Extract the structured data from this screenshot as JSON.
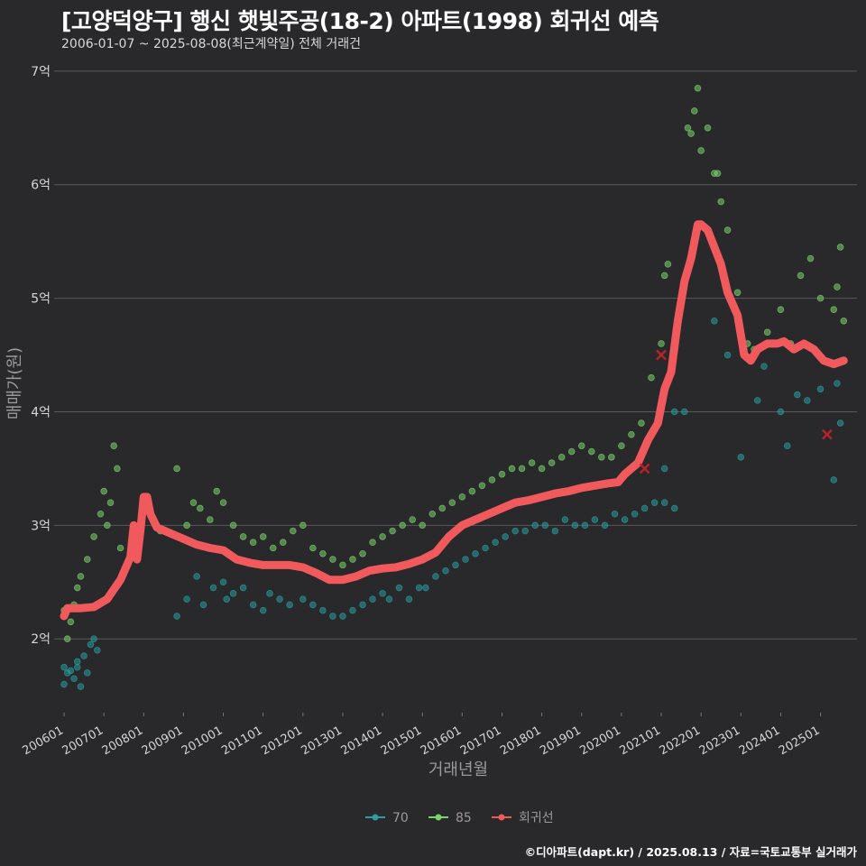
{
  "title": "[고양덕양구] 행신 햇빛주공(18-2) 아파트(1998) 회귀선 예측",
  "subtitle": "2006-01-07 ~ 2025-08-08(최근계약일) 전체 거래건",
  "footer": "©디아파트(dapt.kr) / 2025.08.13 / 자료=국토교통부 실거래가",
  "colors": {
    "background": "#29282a",
    "grid": "#5a595b",
    "size70": "#2a9d9e",
    "size85": "#7ad36b",
    "regression": "#f05a5d"
  },
  "chart_data": {
    "type": "scatter",
    "xlabel": "거래년월",
    "ylabel": "매매가(원)",
    "x_range": [
      "2005-10",
      "2025-12"
    ],
    "ylim": [
      1.35,
      7.15
    ],
    "y_unit": "억",
    "y_ticks": [
      2,
      3,
      4,
      5,
      6,
      7
    ],
    "y_tick_labels": [
      "2억",
      "3억",
      "4억",
      "5억",
      "6억",
      "7억"
    ],
    "x_ticks": [
      "2006-01",
      "2007-01",
      "2008-01",
      "2009-01",
      "2010-01",
      "2011-01",
      "2012-01",
      "2013-01",
      "2014-01",
      "2015-01",
      "2016-01",
      "2017-01",
      "2018-01",
      "2019-01",
      "2020-01",
      "2021-01",
      "2022-01",
      "2023-01",
      "2024-01",
      "2025-01"
    ],
    "x_tick_labels": [
      "200601",
      "200701",
      "200801",
      "200901",
      "201001",
      "201101",
      "201201",
      "201301",
      "201401",
      "201501",
      "201601",
      "201701",
      "201801",
      "201901",
      "202001",
      "202101",
      "202201",
      "202301",
      "202401",
      "202501"
    ],
    "grid": "horizontal",
    "legend_position": "bottom",
    "legend": [
      {
        "name": "70",
        "color": "#2a9d9e"
      },
      {
        "name": "85",
        "color": "#7ad36b"
      },
      {
        "name": "회귀선",
        "color": "#f05a5d"
      }
    ],
    "series": [
      {
        "name": "70",
        "points": [
          [
            "2006-01",
            1.75
          ],
          [
            "2006-01",
            1.6
          ],
          [
            "2006-02",
            1.7
          ],
          [
            "2006-03",
            1.72
          ],
          [
            "2006-04",
            1.65
          ],
          [
            "2006-05",
            1.8
          ],
          [
            "2006-05",
            1.75
          ],
          [
            "2006-06",
            1.58
          ],
          [
            "2006-07",
            1.85
          ],
          [
            "2006-08",
            1.7
          ],
          [
            "2006-09",
            1.95
          ],
          [
            "2006-10",
            2.0
          ],
          [
            "2006-11",
            1.9
          ],
          [
            "2008-11",
            2.2
          ],
          [
            "2009-02",
            2.35
          ],
          [
            "2009-05",
            2.55
          ],
          [
            "2009-07",
            2.3
          ],
          [
            "2009-10",
            2.45
          ],
          [
            "2010-01",
            2.5
          ],
          [
            "2010-02",
            2.35
          ],
          [
            "2010-04",
            2.4
          ],
          [
            "2010-07",
            2.45
          ],
          [
            "2010-10",
            2.3
          ],
          [
            "2011-01",
            2.25
          ],
          [
            "2011-03",
            2.4
          ],
          [
            "2011-06",
            2.35
          ],
          [
            "2011-09",
            2.3
          ],
          [
            "2012-01",
            2.35
          ],
          [
            "2012-04",
            2.3
          ],
          [
            "2012-07",
            2.25
          ],
          [
            "2012-10",
            2.2
          ],
          [
            "2013-01",
            2.2
          ],
          [
            "2013-04",
            2.25
          ],
          [
            "2013-07",
            2.3
          ],
          [
            "2013-10",
            2.35
          ],
          [
            "2014-01",
            2.4
          ],
          [
            "2014-03",
            2.35
          ],
          [
            "2014-06",
            2.45
          ],
          [
            "2014-09",
            2.35
          ],
          [
            "2014-12",
            2.45
          ],
          [
            "2015-02",
            2.45
          ],
          [
            "2015-05",
            2.55
          ],
          [
            "2015-08",
            2.6
          ],
          [
            "2015-11",
            2.65
          ],
          [
            "2016-02",
            2.7
          ],
          [
            "2016-05",
            2.75
          ],
          [
            "2016-08",
            2.8
          ],
          [
            "2016-11",
            2.85
          ],
          [
            "2017-02",
            2.9
          ],
          [
            "2017-05",
            2.95
          ],
          [
            "2017-08",
            2.95
          ],
          [
            "2017-11",
            3.0
          ],
          [
            "2018-02",
            3.0
          ],
          [
            "2018-05",
            2.95
          ],
          [
            "2018-08",
            3.05
          ],
          [
            "2018-11",
            3.0
          ],
          [
            "2019-02",
            3.0
          ],
          [
            "2019-05",
            3.05
          ],
          [
            "2019-08",
            3.0
          ],
          [
            "2019-11",
            3.1
          ],
          [
            "2020-02",
            3.05
          ],
          [
            "2020-05",
            3.1
          ],
          [
            "2020-08",
            3.15
          ],
          [
            "2020-11",
            3.2
          ],
          [
            "2021-02",
            3.2
          ],
          [
            "2021-05",
            3.15
          ],
          [
            "2021-02",
            3.5
          ],
          [
            "2021-05",
            4.0
          ],
          [
            "2021-08",
            4.0
          ],
          [
            "2022-05",
            4.8
          ],
          [
            "2022-09",
            4.5
          ],
          [
            "2023-01",
            3.6
          ],
          [
            "2023-06",
            4.1
          ],
          [
            "2023-08",
            4.4
          ],
          [
            "2024-01",
            4.0
          ],
          [
            "2024-03",
            3.7
          ],
          [
            "2024-06",
            4.15
          ],
          [
            "2024-09",
            4.1
          ],
          [
            "2025-01",
            4.2
          ],
          [
            "2025-05",
            3.4
          ],
          [
            "2025-06",
            4.25
          ],
          [
            "2025-07",
            3.9
          ]
        ]
      },
      {
        "name": "85",
        "points": [
          [
            "2006-01",
            2.25
          ],
          [
            "2006-02",
            2.0
          ],
          [
            "2006-03",
            2.15
          ],
          [
            "2006-04",
            2.3
          ],
          [
            "2006-05",
            2.45
          ],
          [
            "2006-06",
            2.55
          ],
          [
            "2006-08",
            2.7
          ],
          [
            "2006-10",
            2.9
          ],
          [
            "2006-12",
            3.1
          ],
          [
            "2007-01",
            3.3
          ],
          [
            "2007-02",
            3.0
          ],
          [
            "2007-03",
            3.2
          ],
          [
            "2007-04",
            3.7
          ],
          [
            "2007-05",
            3.5
          ],
          [
            "2007-06",
            2.8
          ],
          [
            "2008-06",
            2.95
          ],
          [
            "2008-11",
            3.5
          ],
          [
            "2009-02",
            3.0
          ],
          [
            "2009-04",
            3.2
          ],
          [
            "2009-06",
            3.15
          ],
          [
            "2009-09",
            3.05
          ],
          [
            "2009-11",
            3.3
          ],
          [
            "2010-01",
            3.2
          ],
          [
            "2010-04",
            3.0
          ],
          [
            "2010-07",
            2.9
          ],
          [
            "2010-10",
            2.85
          ],
          [
            "2011-01",
            2.9
          ],
          [
            "2011-04",
            2.8
          ],
          [
            "2011-07",
            2.85
          ],
          [
            "2011-10",
            2.95
          ],
          [
            "2012-01",
            3.0
          ],
          [
            "2012-04",
            2.8
          ],
          [
            "2012-07",
            2.75
          ],
          [
            "2012-10",
            2.7
          ],
          [
            "2013-01",
            2.65
          ],
          [
            "2013-04",
            2.7
          ],
          [
            "2013-07",
            2.75
          ],
          [
            "2013-10",
            2.85
          ],
          [
            "2014-01",
            2.9
          ],
          [
            "2014-04",
            2.95
          ],
          [
            "2014-07",
            3.0
          ],
          [
            "2014-10",
            3.05
          ],
          [
            "2015-01",
            3.0
          ],
          [
            "2015-04",
            3.1
          ],
          [
            "2015-07",
            3.15
          ],
          [
            "2015-10",
            3.2
          ],
          [
            "2016-01",
            3.25
          ],
          [
            "2016-04",
            3.3
          ],
          [
            "2016-07",
            3.35
          ],
          [
            "2016-10",
            3.4
          ],
          [
            "2017-01",
            3.45
          ],
          [
            "2017-04",
            3.5
          ],
          [
            "2017-07",
            3.5
          ],
          [
            "2017-10",
            3.55
          ],
          [
            "2018-01",
            3.5
          ],
          [
            "2018-04",
            3.55
          ],
          [
            "2018-07",
            3.6
          ],
          [
            "2018-10",
            3.65
          ],
          [
            "2019-01",
            3.7
          ],
          [
            "2019-04",
            3.65
          ],
          [
            "2019-07",
            3.6
          ],
          [
            "2019-10",
            3.6
          ],
          [
            "2020-01",
            3.7
          ],
          [
            "2020-04",
            3.8
          ],
          [
            "2020-07",
            3.9
          ],
          [
            "2020-10",
            4.3
          ],
          [
            "2021-01",
            4.6
          ],
          [
            "2021-02",
            5.2
          ],
          [
            "2021-03",
            5.3
          ],
          [
            "2021-09",
            6.5
          ],
          [
            "2021-10",
            6.45
          ],
          [
            "2021-11",
            6.65
          ],
          [
            "2021-12",
            6.85
          ],
          [
            "2022-01",
            6.3
          ],
          [
            "2022-03",
            6.5
          ],
          [
            "2022-05",
            6.1
          ],
          [
            "2022-06",
            6.1
          ],
          [
            "2022-07",
            5.85
          ],
          [
            "2022-09",
            5.6
          ],
          [
            "2022-12",
            5.05
          ],
          [
            "2023-03",
            4.6
          ],
          [
            "2023-05",
            4.55
          ],
          [
            "2023-09",
            4.7
          ],
          [
            "2024-01",
            4.9
          ],
          [
            "2024-04",
            4.6
          ],
          [
            "2024-07",
            5.2
          ],
          [
            "2024-10",
            5.35
          ],
          [
            "2025-01",
            5.0
          ],
          [
            "2025-05",
            4.9
          ],
          [
            "2025-06",
            5.1
          ],
          [
            "2025-07",
            5.45
          ],
          [
            "2025-08",
            4.8
          ]
        ]
      },
      {
        "name": "회귀선",
        "points": [
          [
            "2006-01",
            2.2
          ],
          [
            "2006-02",
            2.27
          ],
          [
            "2006-06",
            2.27
          ],
          [
            "2006-10",
            2.28
          ],
          [
            "2007-02",
            2.35
          ],
          [
            "2007-06",
            2.52
          ],
          [
            "2007-09",
            2.72
          ],
          [
            "2007-10",
            3.0
          ],
          [
            "2007-11",
            2.7
          ],
          [
            "2007-12",
            2.95
          ],
          [
            "2008-01",
            3.25
          ],
          [
            "2008-02",
            3.25
          ],
          [
            "2008-03",
            3.1
          ],
          [
            "2008-05",
            2.98
          ],
          [
            "2008-09",
            2.93
          ],
          [
            "2009-01",
            2.88
          ],
          [
            "2009-05",
            2.83
          ],
          [
            "2009-09",
            2.8
          ],
          [
            "2010-01",
            2.78
          ],
          [
            "2010-05",
            2.7
          ],
          [
            "2010-09",
            2.67
          ],
          [
            "2011-01",
            2.65
          ],
          [
            "2011-05",
            2.65
          ],
          [
            "2011-09",
            2.65
          ],
          [
            "2012-01",
            2.63
          ],
          [
            "2012-05",
            2.58
          ],
          [
            "2012-09",
            2.52
          ],
          [
            "2013-01",
            2.52
          ],
          [
            "2013-05",
            2.55
          ],
          [
            "2013-09",
            2.6
          ],
          [
            "2014-01",
            2.62
          ],
          [
            "2014-05",
            2.63
          ],
          [
            "2014-09",
            2.66
          ],
          [
            "2015-01",
            2.7
          ],
          [
            "2015-05",
            2.76
          ],
          [
            "2015-09",
            2.9
          ],
          [
            "2016-01",
            3.0
          ],
          [
            "2016-05",
            3.05
          ],
          [
            "2016-09",
            3.1
          ],
          [
            "2017-01",
            3.15
          ],
          [
            "2017-05",
            3.2
          ],
          [
            "2017-09",
            3.22
          ],
          [
            "2018-01",
            3.25
          ],
          [
            "2018-05",
            3.28
          ],
          [
            "2018-09",
            3.3
          ],
          [
            "2019-01",
            3.33
          ],
          [
            "2019-05",
            3.35
          ],
          [
            "2019-09",
            3.37
          ],
          [
            "2019-12",
            3.38
          ],
          [
            "2020-02",
            3.45
          ],
          [
            "2020-06",
            3.55
          ],
          [
            "2020-09",
            3.75
          ],
          [
            "2020-12",
            3.9
          ],
          [
            "2021-02",
            4.2
          ],
          [
            "2021-04",
            4.35
          ],
          [
            "2021-06",
            4.8
          ],
          [
            "2021-08",
            5.15
          ],
          [
            "2021-10",
            5.35
          ],
          [
            "2021-12",
            5.65
          ],
          [
            "2022-01",
            5.65
          ],
          [
            "2022-03",
            5.6
          ],
          [
            "2022-05",
            5.45
          ],
          [
            "2022-07",
            5.3
          ],
          [
            "2022-09",
            5.05
          ],
          [
            "2022-12",
            4.85
          ],
          [
            "2023-02",
            4.5
          ],
          [
            "2023-04",
            4.45
          ],
          [
            "2023-06",
            4.55
          ],
          [
            "2023-09",
            4.6
          ],
          [
            "2023-12",
            4.6
          ],
          [
            "2024-02",
            4.62
          ],
          [
            "2024-05",
            4.55
          ],
          [
            "2024-08",
            4.6
          ],
          [
            "2024-11",
            4.55
          ],
          [
            "2025-02",
            4.45
          ],
          [
            "2025-05",
            4.42
          ],
          [
            "2025-08",
            4.45
          ]
        ]
      }
    ],
    "markers": [
      {
        "x": "2020-08",
        "y": 3.5
      },
      {
        "x": "2021-01",
        "y": 4.5
      },
      {
        "x": "2025-03",
        "y": 3.8
      }
    ]
  }
}
